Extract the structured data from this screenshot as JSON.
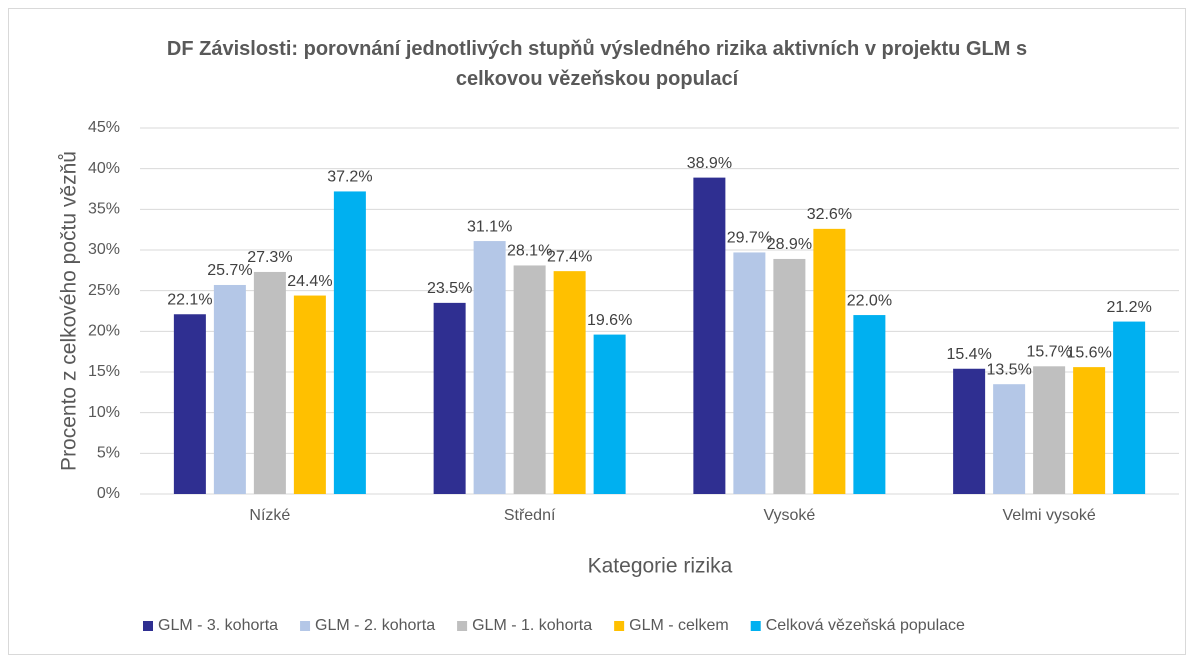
{
  "chart_data": {
    "type": "bar",
    "title": "DF Závislosti: porovnání jednotlivých stupňů výsledného rizika aktivních v projektu GLM s celkovou vězeňskou populací",
    "xlabel": "Kategorie rizika",
    "ylabel": "Procento z celkového počtu vězňů",
    "categories": [
      "Nízké",
      "Střední",
      "Vysoké",
      "Velmi vysoké"
    ],
    "series": [
      {
        "name": "GLM - 3. kohorta",
        "color": "#2f2f91",
        "values": [
          22.1,
          23.5,
          38.9,
          15.4
        ],
        "value_labels": [
          "22.1%",
          "23.5%",
          "38.9%",
          "15.4%"
        ]
      },
      {
        "name": "GLM - 2. kohorta",
        "color": "#b4c7e7",
        "values": [
          25.7,
          31.1,
          29.7,
          13.5
        ],
        "value_labels": [
          "25.7%",
          "31.1%",
          "29.7%",
          "13.5%"
        ]
      },
      {
        "name": "GLM - 1. kohorta",
        "color": "#bfbfbf",
        "values": [
          27.3,
          28.1,
          28.9,
          15.7
        ],
        "value_labels": [
          "27.3%",
          "28.1%",
          "28.9%",
          "15.7%"
        ]
      },
      {
        "name": "GLM - celkem",
        "color": "#ffc000",
        "values": [
          24.4,
          27.4,
          32.6,
          15.6
        ],
        "value_labels": [
          "24.4%",
          "27.4%",
          "32.6%",
          "15.6%"
        ]
      },
      {
        "name": "Celková vězeňská populace",
        "color": "#00b0f0",
        "values": [
          37.2,
          19.6,
          22.0,
          21.2
        ],
        "value_labels": [
          "37.2%",
          "19.6%",
          "22.0%",
          "21.2%"
        ]
      }
    ],
    "ylim": [
      0,
      45
    ],
    "yticks": [
      {
        "value": 0,
        "label": "0%"
      },
      {
        "value": 5,
        "label": "5%"
      },
      {
        "value": 10,
        "label": "10%"
      },
      {
        "value": 15,
        "label": "15%"
      },
      {
        "value": 20,
        "label": "20%"
      },
      {
        "value": 25,
        "label": "25%"
      },
      {
        "value": 30,
        "label": "30%"
      },
      {
        "value": 35,
        "label": "35%"
      },
      {
        "value": 40,
        "label": "40%"
      },
      {
        "value": 45,
        "label": "45%"
      }
    ],
    "grid": true,
    "legend": "bottom"
  }
}
